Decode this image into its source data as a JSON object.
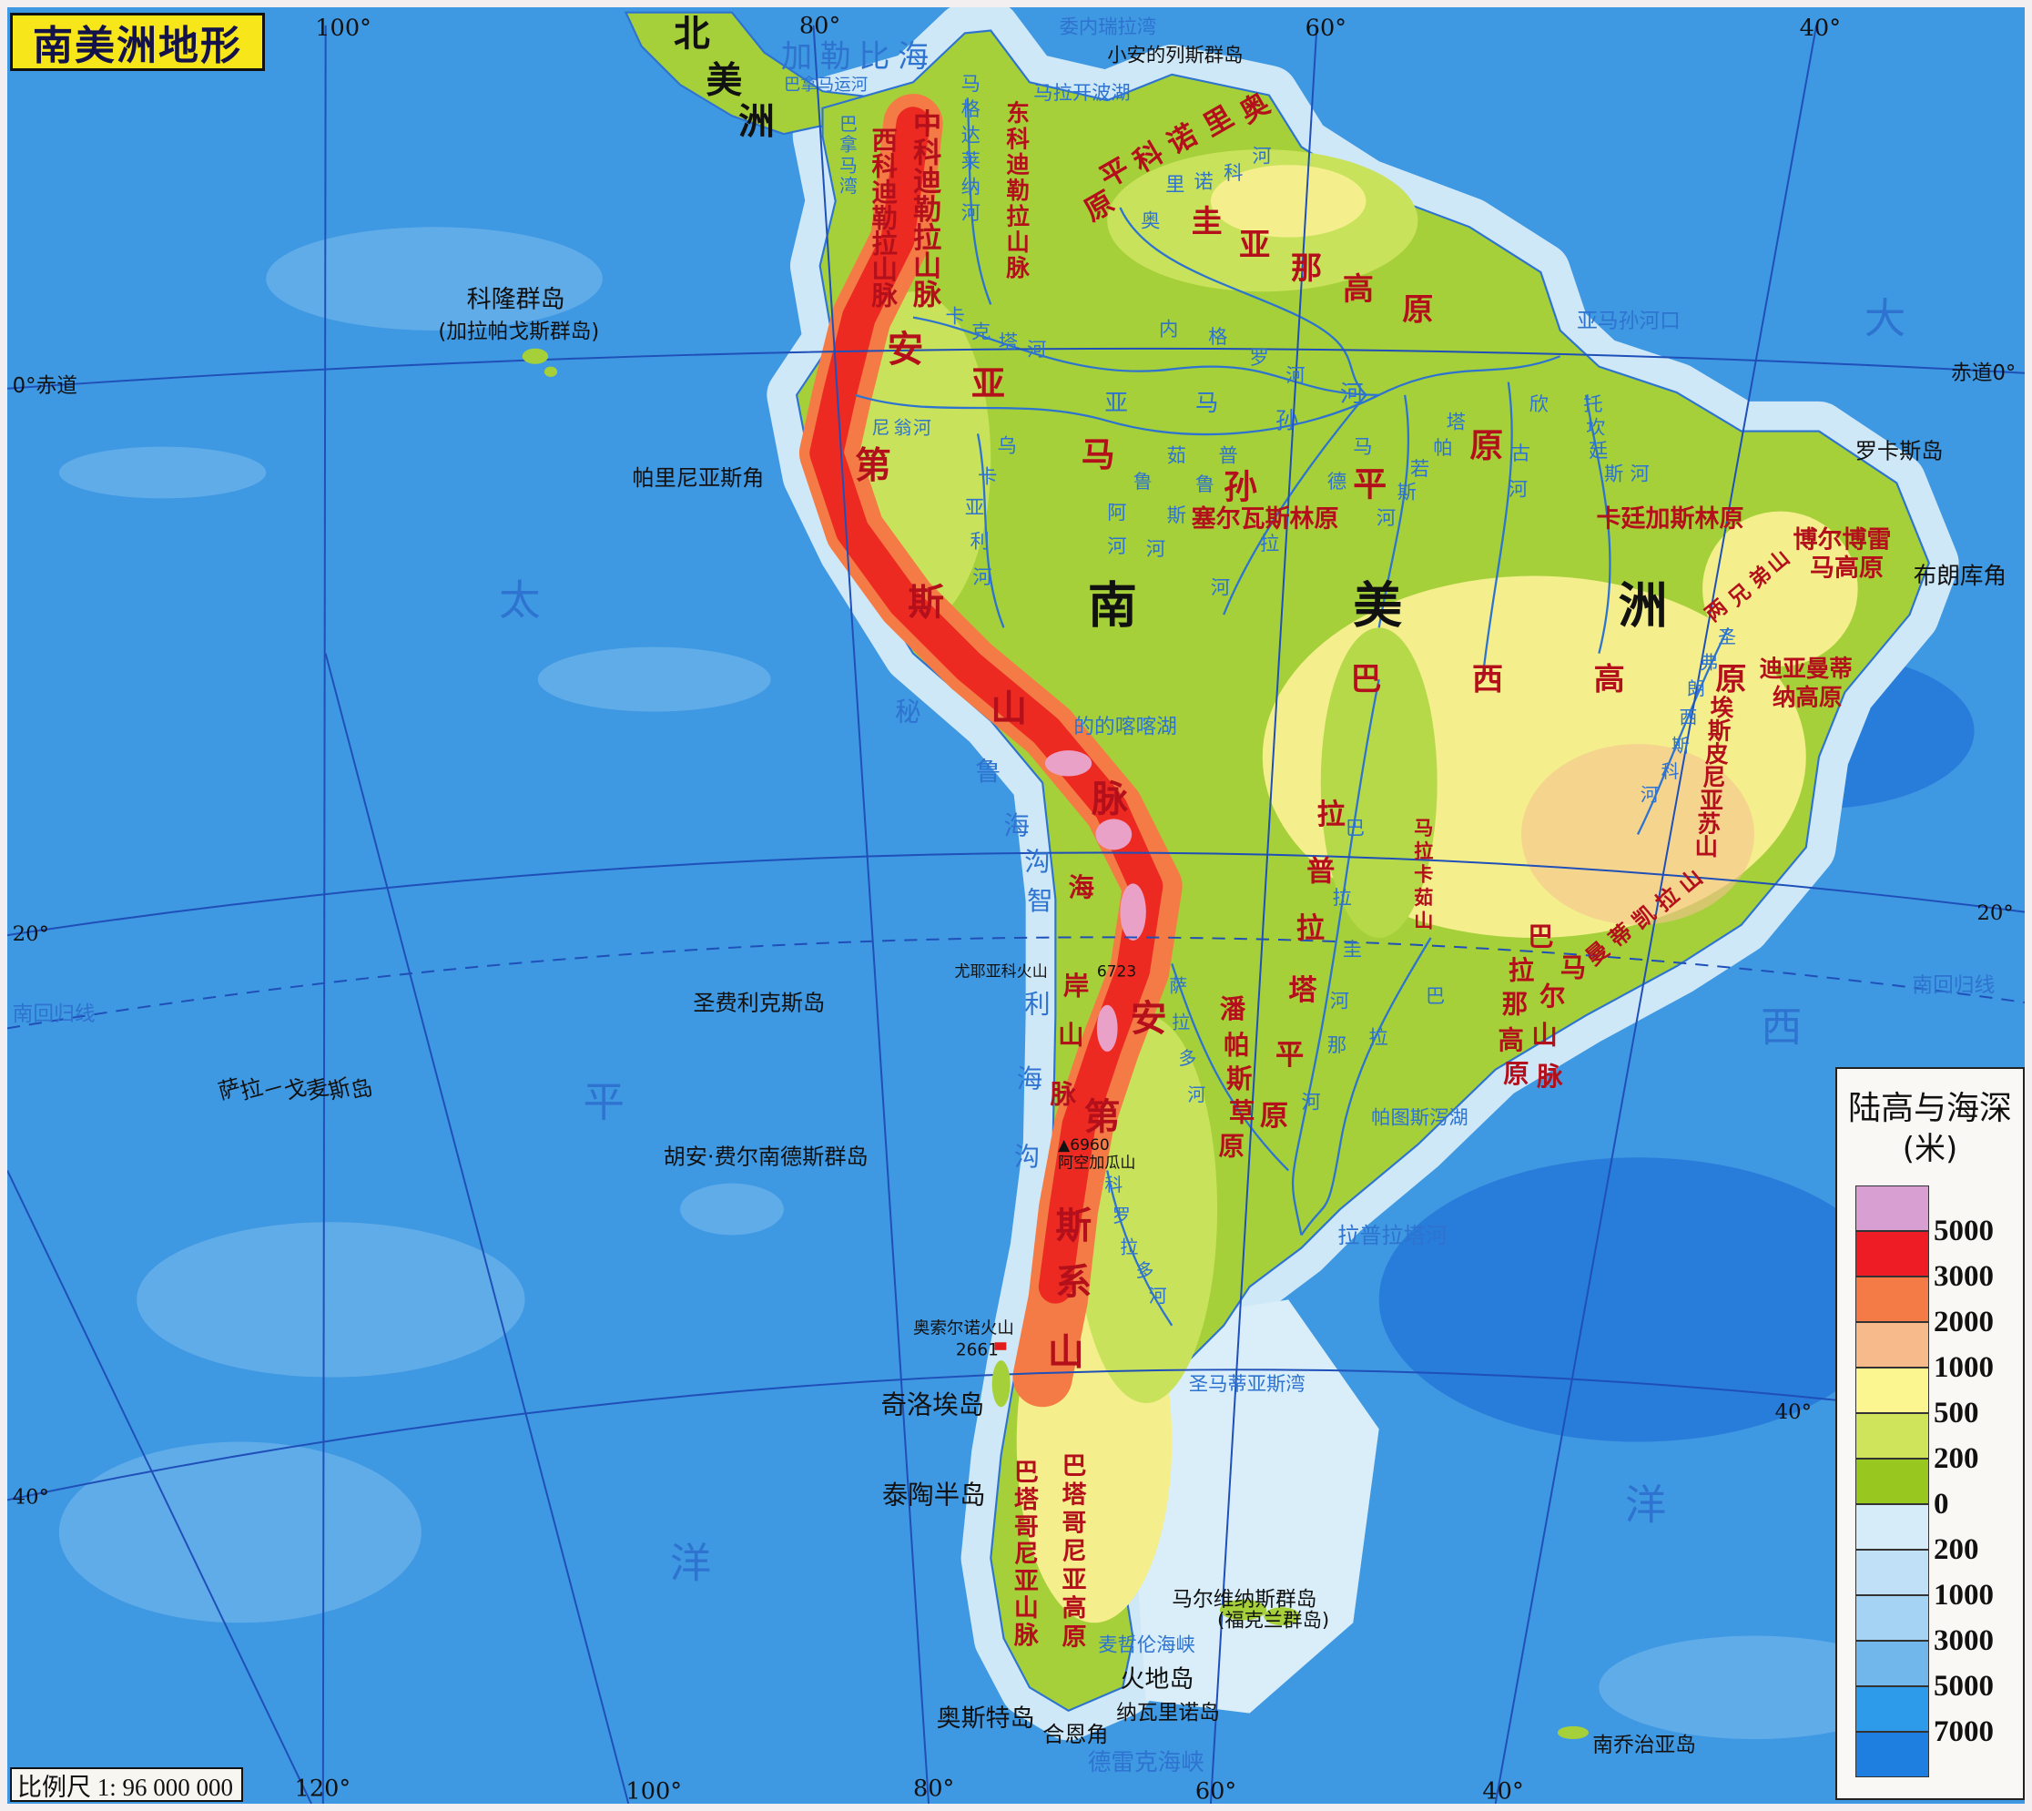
{
  "title": "南美洲地形",
  "scale": "比例尺 1: 96 000 000",
  "graticule": {
    "top": [
      "100°",
      "80°",
      "60°",
      "40°"
    ],
    "bottom": [
      "120°",
      "100°",
      "80°",
      "60°",
      "40°"
    ],
    "left": [
      "0°赤道",
      "20°",
      "南回归线",
      "40°"
    ],
    "right": [
      "赤道0°",
      "20°",
      "南回归线",
      "40°"
    ]
  },
  "continents": {
    "south_america": "南美洲",
    "north_america": "北美洲"
  },
  "oceans": {
    "pacific": "太平洋",
    "atlantic": "大西洋",
    "caribbean": "加勒比海"
  },
  "landforms": {
    "west_cordillera": "西科迪勒拉山脉",
    "central_cordillera": "中科迪勒拉山脉",
    "east_cordillera": "东科迪勒拉山脉",
    "guiana_highlands": "圭亚那高原",
    "orinoco_plain": "奥里诺科平原",
    "amazon_plain": "亚马孙平原",
    "selvas": "塞尔瓦斯林原",
    "caatinga": "卡廷加斯林原",
    "borborema": [
      "博尔博雷",
      "马高原"
    ],
    "diamantina": [
      "迪亚曼蒂",
      "纳高原"
    ],
    "two_brothers": "两兄弟山",
    "brazilian_highlands": "巴西高原",
    "andes_north": "安第斯山脉",
    "andes_south": "安第斯山系",
    "coast_range": "海岸山脉",
    "maracaju": "马拉卡茹山",
    "la_plata_plain": "拉普拉塔平原",
    "pampas": "潘帕斯草原",
    "parana_plateau": "巴拉那高原",
    "mar_range": "马尔山脉",
    "mantiqueira": "曼蒂凯拉山",
    "espinhaco": "埃斯皮尼亚苏山",
    "patagonian_andes": "巴塔哥尼亚山脉",
    "patagonian_plateau": "巴塔哥尼亚高原"
  },
  "waters": {
    "panama_canal": "巴拿马运河",
    "gulf_of_panama": "巴拿马湾",
    "gulf_of_venezuela": "委内瑞拉湾",
    "maracaibo": "马拉开波湖",
    "magdalena": "马格达莱纳河",
    "orinoco": "奥里诺科河",
    "caqueta": "卡克塔河",
    "negro": "内格罗河",
    "amazon": "亚马孙河",
    "amazon_mouth": "亚马孙河口",
    "maranon": "尼翁河",
    "ucayali": "乌卡亚利河",
    "jurua": "茹鲁阿河",
    "purus": "普鲁斯河",
    "madeira": "马德拉河",
    "tapajos": "塔帕若斯河",
    "xingu": "欣古河",
    "tocantins": "托坎廷斯河",
    "sao_francisco": "圣弗朗西斯科河",
    "titicaca": "的的喀喀湖",
    "paraguay": "巴拉圭河",
    "parana": "巴拉那河",
    "salado": "萨拉多河",
    "colorado": "科罗拉多河",
    "patos": "帕图斯泻湖",
    "rio_de_la_plata": "拉普拉塔河",
    "peru_trench": "秘鲁海沟",
    "chile_trench": "智利海沟",
    "san_matias": "圣马蒂亚斯湾",
    "magellan": "麦哲伦海峡",
    "drake": "德雷克海峡"
  },
  "islands": {
    "lesser_antilles": "小安的列斯群岛",
    "galapagos": "科隆群岛",
    "galapagos_alt": "(加拉帕戈斯群岛)",
    "parinas": "帕里尼亚斯角",
    "rocas": "罗卡斯岛",
    "branco": "布朗库角",
    "san_felix": "圣费利克斯岛",
    "sala_y_gomez": "萨拉－戈麦斯岛",
    "juan_fernandez": "胡安·费尔南德斯群岛",
    "chiloe": "奇洛埃岛",
    "taitao": "泰陶半岛",
    "malvinas": "马尔维纳斯群岛",
    "falklands": "(福克兰群岛)",
    "tierra_del_fuego": "火地岛",
    "navarino": "纳瓦里诺岛",
    "hoste": "奥斯特岛",
    "cape_horn": "合恩角",
    "south_georgia": "南乔治亚岛"
  },
  "peaks": {
    "llullaillaco": {
      "name": "尤耶亚科火山",
      "elevation": "6723"
    },
    "aconcagua": {
      "name": "阿空加瓜山",
      "elevation": "▲6960"
    },
    "osorno": {
      "name": "奥索尔诺火山",
      "elevation": "2661"
    }
  },
  "legend": {
    "title": "陆高与海深",
    "unit": "(米)",
    "colors": [
      "#d79fd2",
      "#ee1d25",
      "#f47b45",
      "#f7bb8b",
      "#fbf690",
      "#cfe35b",
      "#98c820",
      "#d6ecf8",
      "#bfe0f7",
      "#a5d3f4",
      "#72b7ec",
      "#2d9be9",
      "#1f7fe0"
    ],
    "labels": [
      "5000",
      "3000",
      "2000",
      "1000",
      "500",
      "200",
      "0",
      "200",
      "1000",
      "3000",
      "5000",
      "7000"
    ]
  },
  "colors": {
    "ocean": "#3f98e2",
    "shelf": "#cfe8f8",
    "lowland": "#9fcd32",
    "plain": "#c6e05a",
    "plateau": "#f4ef8c",
    "mountain": "#ec2a22",
    "high": "#e9a1c8",
    "graticule": "#1f4fb8"
  }
}
